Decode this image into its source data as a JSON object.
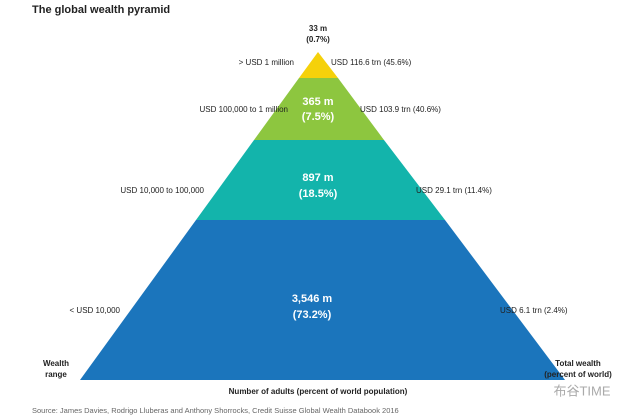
{
  "header": {
    "title": "The global wealth pyramid"
  },
  "tiers": [
    {
      "adults": "33 m",
      "share": "(0.7%)",
      "wealth_range": "> USD 1 million",
      "total_wealth": "USD 116.6 trn (45.6%)"
    },
    {
      "adults": "365 m",
      "share": "(7.5%)",
      "wealth_range": "USD 100,000 to 1 million",
      "total_wealth": "USD 103.9 trn (40.6%)"
    },
    {
      "adults": "897 m",
      "share": "(18.5%)",
      "wealth_range": "USD 10,000 to 100,000",
      "total_wealth": "USD 29.1 trn (11.4%)"
    },
    {
      "adults": "3,546 m",
      "share": "(73.2%)",
      "wealth_range": "< USD 10,000",
      "total_wealth": "USD 6.1 trn (2.4%)"
    }
  ],
  "labels": {
    "left": [
      "Wealth",
      "range"
    ],
    "right": [
      "Total wealth",
      "(percent of world)"
    ],
    "bottom": "Number of adults (percent of world population)"
  },
  "source": "Source: James Davies, Rodrigo Lluberas and Anthony Shorrocks, Credit Suisse Global Wealth Databook 2016",
  "watermark": "布谷TIME"
}
